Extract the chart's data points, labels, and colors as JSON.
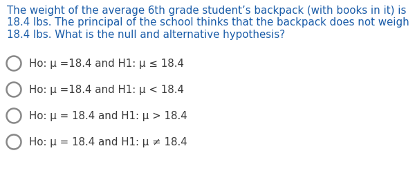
{
  "background_color": "#ffffff",
  "question_text": "The weight of the average 6th grade student’s backpack (with books in it) is\n18.4 lbs. The principal of the school thinks that the backpack does not weigh\n18.4 lbs. What is the null and alternative hypothesis?",
  "question_color": "#1a5ca8",
  "question_fontsize": 10.8,
  "options": [
    "Ho: μ =18.4 and H1: μ ≤ 18.4",
    "Ho: μ =18.4 and H1: μ < 18.4",
    "Ho: μ = 18.4 and H1: μ > 18.4",
    "Ho: μ = 18.4 and H1: μ ≠ 18.4"
  ],
  "option_color": "#3a3a3a",
  "option_fontsize": 10.8,
  "circle_color": "#888888",
  "circle_linewidth": 1.8,
  "fig_width": 6.0,
  "fig_height": 2.55,
  "dpi": 100
}
